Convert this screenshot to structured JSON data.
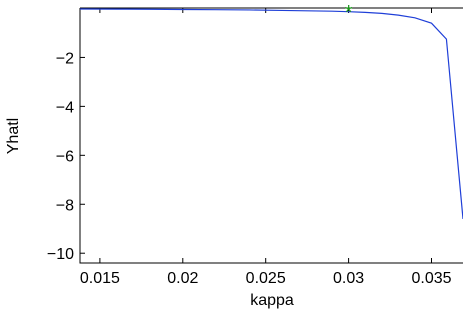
{
  "chart_data": {
    "type": "line",
    "title": "",
    "xlabel": "kappa",
    "ylabel": "Yhatl",
    "xlim": [
      0.0138,
      0.0369
    ],
    "ylim": [
      -10.4,
      0.02
    ],
    "x_ticks": [
      0.015,
      0.02,
      0.025,
      0.03,
      0.035
    ],
    "x_tick_labels": [
      "0.015",
      "0.02",
      "0.025",
      "0.03",
      "0.035"
    ],
    "y_ticks": [
      -2,
      -4,
      -6,
      -8,
      -10
    ],
    "y_tick_labels": [
      "−2",
      "−4",
      "−6",
      "−8",
      "−10"
    ],
    "grid": false,
    "series": [
      {
        "color": "#1f3fd8",
        "x": [
          0.0138,
          0.016,
          0.018,
          0.02,
          0.022,
          0.024,
          0.026,
          0.028,
          0.029,
          0.03,
          0.031,
          0.032,
          0.033,
          0.034,
          0.035,
          0.0359,
          0.0369
        ],
        "y": [
          -0.02,
          -0.025,
          -0.03,
          -0.04,
          -0.05,
          -0.06,
          -0.08,
          -0.1,
          -0.11,
          -0.13,
          -0.16,
          -0.2,
          -0.27,
          -0.38,
          -0.6,
          -1.25,
          -8.6
        ]
      }
    ],
    "marker": {
      "x": 0.03,
      "y": -0.1,
      "symbol": "*",
      "color": "#1a9a1a"
    }
  }
}
